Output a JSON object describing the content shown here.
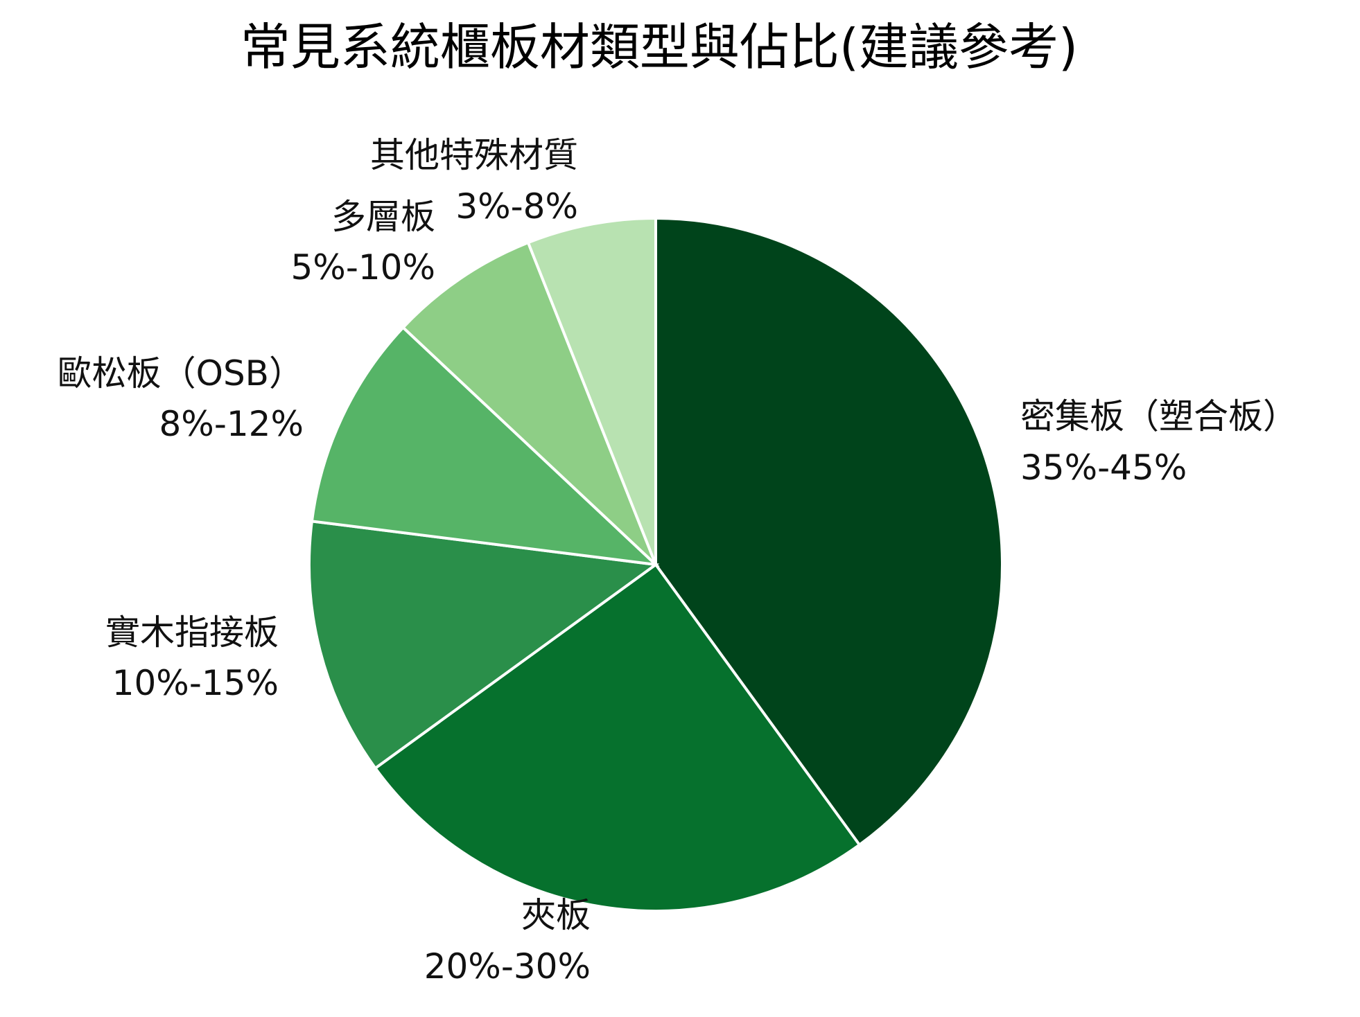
{
  "chart_data": {
    "type": "pie",
    "title": "常見系統櫃板材類型與佔比(建議參考)",
    "start_angle_deg": 0,
    "direction": "clockwise",
    "slices": [
      {
        "name": "密集板（塑合板）",
        "range_label": "35%-45%",
        "value": 40,
        "color": "#00441b",
        "label_side": "right"
      },
      {
        "name": "夾板",
        "range_label": "20%-30%",
        "value": 25,
        "color": "#06712d",
        "label_side": "bottom"
      },
      {
        "name": "實木指接板",
        "range_label": "10%-15%",
        "value": 12,
        "color": "#2a8f4a",
        "label_side": "left"
      },
      {
        "name": "歐松板（OSB）",
        "range_label": "8%-12%",
        "value": 10,
        "color": "#56b467",
        "label_side": "left"
      },
      {
        "name": "多層板",
        "range_label": "5%-10%",
        "value": 7,
        "color": "#8ece86",
        "label_side": "left"
      },
      {
        "name": "其他特殊材質",
        "range_label": "3%-8%",
        "value": 6,
        "color": "#b8e2b1",
        "label_side": "top"
      }
    ],
    "legend": "none"
  }
}
